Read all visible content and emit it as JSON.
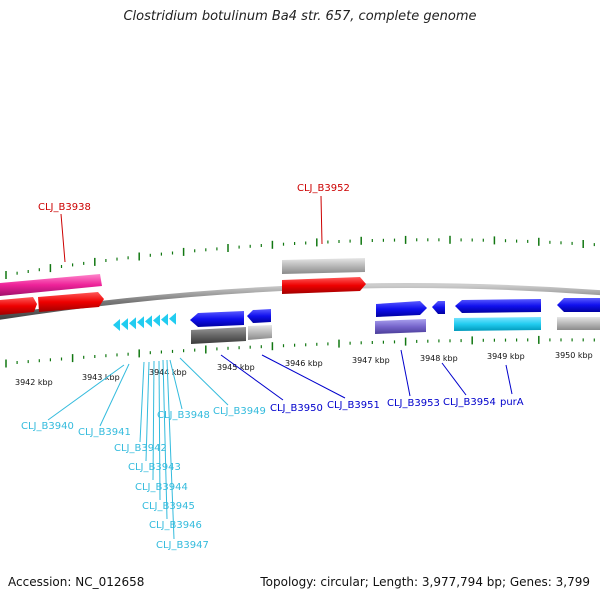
{
  "title": "Clostridium botulinum Ba4 str. 657, complete genome",
  "footer": {
    "accession": "Accession: NC_012658",
    "topology": "Topology: circular; Length: 3,977,794 bp; Genes: 3,799"
  },
  "scale_labels": [
    "3942 kbp",
    "3943 kbp",
    "3944 kbp",
    "3945 kbp",
    "3946 kbp",
    "3947 kbp",
    "3948 kbp",
    "3949 kbp",
    "3950 kbp"
  ],
  "colors": {
    "red_label": "#cc0000",
    "blue_label": "#0000cc",
    "cyan_label": "#33bbdd",
    "tick": "#117711",
    "backbone": "#888888"
  },
  "gene_labels": [
    "CLJ_B3938",
    "CLJ_B3952",
    "CLJ_B3940",
    "CLJ_B3941",
    "CLJ_B3942",
    "CLJ_B3943",
    "CLJ_B3944",
    "CLJ_B3945",
    "CLJ_B3946",
    "CLJ_B3947",
    "CLJ_B3948",
    "CLJ_B3949",
    "CLJ_B3950",
    "CLJ_B3951",
    "CLJ_B3953",
    "CLJ_B3954",
    "purA"
  ]
}
